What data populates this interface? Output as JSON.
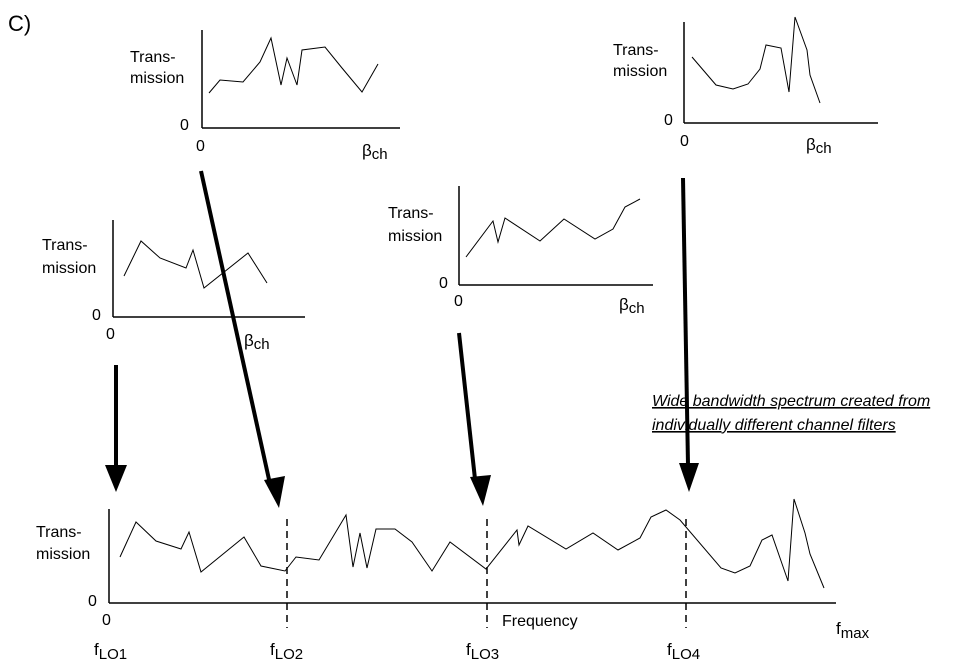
{
  "panel_label": "C)",
  "axis_text": {
    "ylabel_line1": "Trans-",
    "ylabel_line2": "mission",
    "zero": "0",
    "beta_symbol": "β",
    "beta_sub": "ch"
  },
  "annotation": {
    "line1": "Wide bandwidth spectrum created from",
    "line2": "individually different channel filters"
  },
  "bottom": {
    "ylabel_line1": "Trans-",
    "ylabel_line2": "mission",
    "y_zero": "0",
    "x_zero": "0",
    "xlabel": "Frequency",
    "markers": [
      {
        "main": "f",
        "sub": "LO1"
      },
      {
        "main": "f",
        "sub": "LO2"
      },
      {
        "main": "f",
        "sub": "LO3"
      },
      {
        "main": "f",
        "sub": "LO4"
      }
    ],
    "fmax_main": "f",
    "fmax_sub": "max"
  },
  "colors": {
    "ink": "#000000",
    "background": "#ffffff"
  }
}
